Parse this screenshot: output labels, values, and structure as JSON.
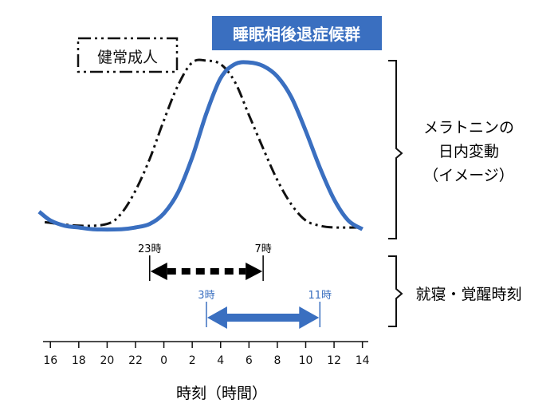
{
  "chart_data": {
    "type": "line",
    "xlabel": "時刻（時間）",
    "x_ticks": [
      "16",
      "18",
      "20",
      "22",
      "0",
      "2",
      "4",
      "6",
      "8",
      "10",
      "12",
      "14"
    ],
    "x_hours": [
      16,
      18,
      20,
      22,
      24,
      26,
      28,
      30,
      32,
      34,
      36,
      38
    ],
    "xlim": [
      15.2,
      38.3
    ],
    "ylim": [
      0,
      1
    ],
    "series": [
      {
        "name": "健常成人",
        "style": "dash-dot-dot",
        "color": "#111111",
        "points": [
          [
            15.6,
            0.08
          ],
          [
            18,
            0.06
          ],
          [
            20,
            0.07
          ],
          [
            21,
            0.13
          ],
          [
            22,
            0.26
          ],
          [
            23,
            0.44
          ],
          [
            24,
            0.66
          ],
          [
            25,
            0.86
          ],
          [
            26,
            0.99
          ],
          [
            27,
            1.0
          ],
          [
            28,
            0.98
          ],
          [
            29,
            0.88
          ],
          [
            30,
            0.69
          ],
          [
            31,
            0.5
          ],
          [
            32,
            0.32
          ],
          [
            33,
            0.18
          ],
          [
            34,
            0.09
          ],
          [
            35,
            0.06
          ],
          [
            36,
            0.05
          ],
          [
            38,
            0.05
          ]
        ]
      },
      {
        "name": "睡眠相後退症候群",
        "style": "solid",
        "color": "#3a6fc0",
        "points": [
          [
            15.2,
            0.14
          ],
          [
            16,
            0.09
          ],
          [
            17,
            0.06
          ],
          [
            18,
            0.05
          ],
          [
            19,
            0.04
          ],
          [
            21,
            0.04
          ],
          [
            22,
            0.05
          ],
          [
            23,
            0.07
          ],
          [
            24,
            0.13
          ],
          [
            25,
            0.25
          ],
          [
            26,
            0.45
          ],
          [
            27,
            0.7
          ],
          [
            28,
            0.9
          ],
          [
            29,
            0.98
          ],
          [
            30,
            0.99
          ],
          [
            31,
            0.97
          ],
          [
            32,
            0.91
          ],
          [
            33,
            0.79
          ],
          [
            34,
            0.6
          ],
          [
            35,
            0.39
          ],
          [
            36,
            0.21
          ],
          [
            37,
            0.09
          ],
          [
            38,
            0.04
          ]
        ]
      }
    ],
    "legend_normal": "健常成人",
    "legend_dsps": "睡眠相後退症候群",
    "right_label_lines": [
      "メラトニンの",
      "日内変動",
      "（イメージ）"
    ],
    "sleep_label": "就寝・覚醒時刻",
    "sleep_windows": [
      {
        "start": 23,
        "end": 31,
        "start_label": "23時",
        "end_label": "7時",
        "color": "#000000",
        "style": "dotted"
      },
      {
        "start": 27,
        "end": 35,
        "start_label": "3時",
        "end_label": "11時",
        "color": "#3a6fc0",
        "style": "solid"
      }
    ]
  }
}
